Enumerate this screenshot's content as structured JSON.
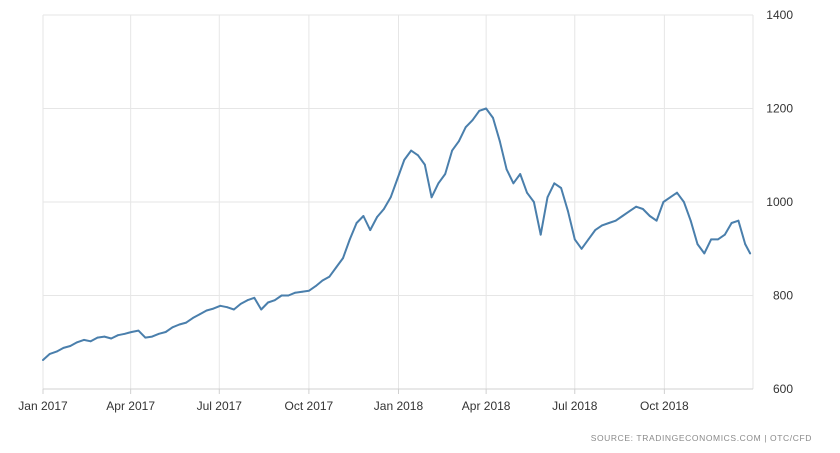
{
  "chart_data": {
    "type": "line",
    "title": "",
    "xlabel": "",
    "ylabel": "",
    "ylim": [
      600,
      1400
    ],
    "y_ticks": [
      "600",
      "800",
      "1000",
      "1200",
      "1400"
    ],
    "y_axis_side": "right",
    "x_ticks": [
      {
        "label": "Jan 2017",
        "date": "2017-01-01"
      },
      {
        "label": "Apr 2017",
        "date": "2017-04-01"
      },
      {
        "label": "Jul 2017",
        "date": "2017-07-01"
      },
      {
        "label": "Oct 2017",
        "date": "2017-10-01"
      },
      {
        "label": "Jan 2018",
        "date": "2018-01-01"
      },
      {
        "label": "Apr 2018",
        "date": "2018-04-01"
      },
      {
        "label": "Jul 2018",
        "date": "2018-07-01"
      },
      {
        "label": "Oct 2018",
        "date": "2018-10-01"
      }
    ],
    "xlim": [
      "2017-01-01",
      "2018-12-31"
    ],
    "grid": true,
    "line_color": "#4a7fac",
    "series": [
      {
        "x": [
          "2017-01-01",
          "2017-01-08",
          "2017-01-15",
          "2017-01-22",
          "2017-01-29",
          "2017-02-05",
          "2017-02-12",
          "2017-02-19",
          "2017-02-26",
          "2017-03-05",
          "2017-03-12",
          "2017-03-19",
          "2017-03-26",
          "2017-04-02",
          "2017-04-09",
          "2017-04-16",
          "2017-04-23",
          "2017-04-30",
          "2017-05-07",
          "2017-05-14",
          "2017-05-21",
          "2017-05-28",
          "2017-06-04",
          "2017-06-11",
          "2017-06-18",
          "2017-06-25",
          "2017-07-02",
          "2017-07-09",
          "2017-07-16",
          "2017-07-23",
          "2017-07-30",
          "2017-08-06",
          "2017-08-13",
          "2017-08-20",
          "2017-08-27",
          "2017-09-03",
          "2017-09-10",
          "2017-09-17",
          "2017-09-24",
          "2017-10-01",
          "2017-10-08",
          "2017-10-15",
          "2017-10-22",
          "2017-10-29",
          "2017-11-05",
          "2017-11-12",
          "2017-11-19",
          "2017-11-26",
          "2017-12-03",
          "2017-12-10",
          "2017-12-17",
          "2017-12-24",
          "2017-12-31",
          "2018-01-07",
          "2018-01-14",
          "2018-01-21",
          "2018-01-28",
          "2018-02-04",
          "2018-02-11",
          "2018-02-18",
          "2018-02-25",
          "2018-03-04",
          "2018-03-11",
          "2018-03-18",
          "2018-03-25",
          "2018-04-01",
          "2018-04-08",
          "2018-04-15",
          "2018-04-22",
          "2018-04-29",
          "2018-05-06",
          "2018-05-13",
          "2018-05-20",
          "2018-05-27",
          "2018-06-03",
          "2018-06-10",
          "2018-06-17",
          "2018-06-24",
          "2018-07-01",
          "2018-07-08",
          "2018-07-15",
          "2018-07-22",
          "2018-07-29",
          "2018-08-05",
          "2018-08-12",
          "2018-08-19",
          "2018-08-26",
          "2018-09-02",
          "2018-09-09",
          "2018-09-16",
          "2018-09-23",
          "2018-09-30",
          "2018-10-07",
          "2018-10-14",
          "2018-10-21",
          "2018-10-28",
          "2018-11-04",
          "2018-11-11",
          "2018-11-18",
          "2018-11-25",
          "2018-12-02",
          "2018-12-09",
          "2018-12-16",
          "2018-12-23",
          "2018-12-28"
        ],
        "y": [
          662,
          675,
          680,
          688,
          692,
          700,
          705,
          702,
          710,
          712,
          708,
          715,
          718,
          722,
          725,
          710,
          712,
          718,
          722,
          732,
          738,
          742,
          752,
          760,
          768,
          772,
          778,
          775,
          770,
          782,
          790,
          795,
          770,
          785,
          790,
          800,
          800,
          806,
          808,
          810,
          820,
          832,
          840,
          860,
          880,
          920,
          955,
          970,
          940,
          968,
          985,
          1010,
          1050,
          1090,
          1110,
          1100,
          1080,
          1010,
          1040,
          1060,
          1110,
          1130,
          1160,
          1175,
          1195,
          1200,
          1180,
          1130,
          1070,
          1040,
          1060,
          1020,
          1000,
          930,
          1010,
          1040,
          1030,
          980,
          920,
          900,
          920,
          940,
          950,
          955,
          960,
          970,
          980,
          990,
          985,
          970,
          960,
          1000,
          1010,
          1020,
          1000,
          960,
          910,
          890,
          920,
          920,
          930,
          955,
          960,
          910,
          890
        ]
      }
    ],
    "source": "SOURCE: TRADINGECONOMICS.COM  |  OTC/CFD"
  }
}
